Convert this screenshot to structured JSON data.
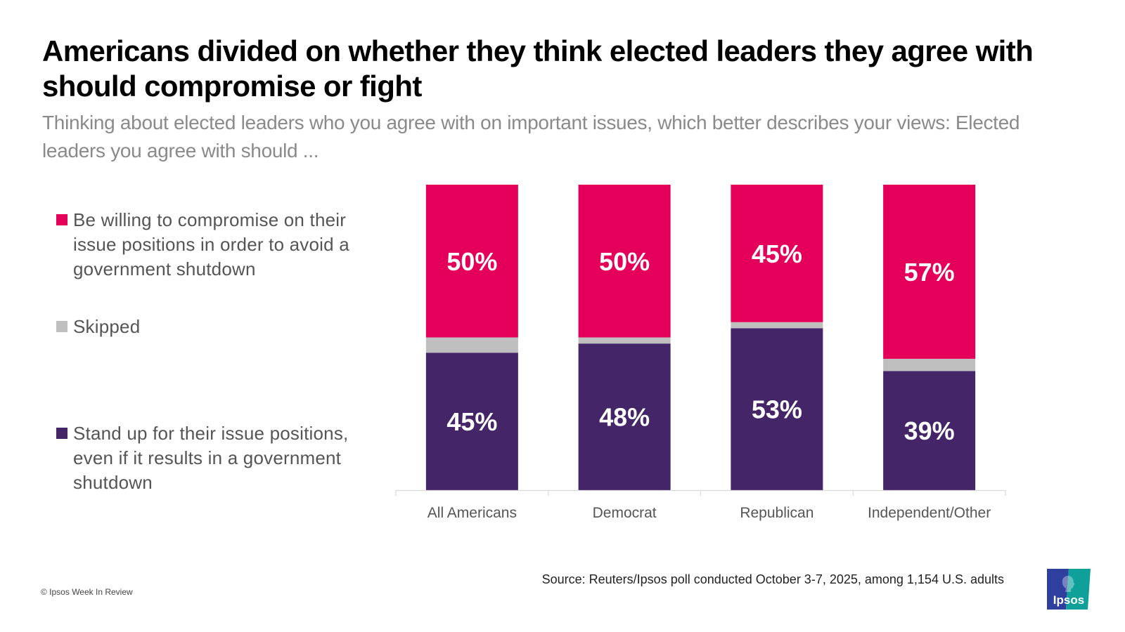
{
  "header": {
    "title": "Americans divided on whether they think elected leaders they agree with should compromise or fight",
    "subtitle": "Thinking about elected leaders who you agree with on important issues, which better describes your views: Elected leaders you agree with should ..."
  },
  "legend": {
    "items": [
      {
        "label": "Be willing to compromise on their issue positions in order to avoid a government shutdown",
        "color": "#E4005A"
      },
      {
        "label": "Skipped",
        "color": "#BFBFBF"
      },
      {
        "label": "Stand up for their issue positions, even if it results in a government shutdown",
        "color": "#442567"
      }
    ]
  },
  "chart_data": {
    "type": "bar",
    "stacked": true,
    "orientation": "vertical",
    "title": "Americans divided on whether they think elected leaders they agree with should compromise or fight",
    "xlabel": "",
    "ylabel": "",
    "ylim": [
      0,
      100
    ],
    "grid": false,
    "legend_position": "left",
    "categories": [
      "All Americans",
      "Democrat",
      "Republican",
      "Independent/Other"
    ],
    "series": [
      {
        "name": "Stand up for their issue positions, even if it results in a government shutdown",
        "color": "#442567",
        "values": [
          45,
          48,
          53,
          39
        ],
        "labels": [
          "45%",
          "48%",
          "53%",
          "39%"
        ]
      },
      {
        "name": "Skipped",
        "color": "#BFBFBF",
        "values": [
          5,
          2,
          2,
          4
        ],
        "labels": [
          "",
          "",
          "",
          ""
        ]
      },
      {
        "name": "Be willing to compromise on their issue positions in order to avoid a government shutdown",
        "color": "#E4005A",
        "values": [
          50,
          50,
          45,
          57
        ],
        "labels": [
          "50%",
          "50%",
          "45%",
          "57%"
        ]
      }
    ]
  },
  "footer": {
    "copyright": "© Ipsos Week In Review",
    "source": "Source: Reuters/Ipsos poll conducted October 3-7, 2025, among 1,154 U.S. adults",
    "logo_text": "Ipsos",
    "logo_colors": {
      "left": "#2E3F9E",
      "right": "#0FA09A"
    }
  }
}
